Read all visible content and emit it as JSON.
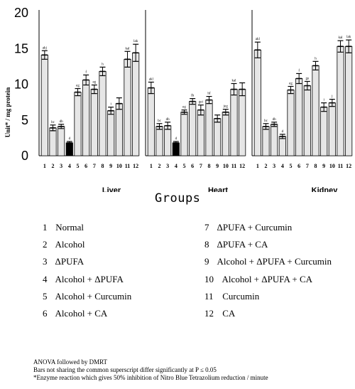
{
  "chart_data": {
    "type": "bar",
    "ylabel": "Unit* / mg protein",
    "ylim": [
      0,
      20
    ],
    "yticks": [
      0,
      5,
      10,
      15,
      20
    ],
    "categories": [
      "1",
      "2",
      "3",
      "4",
      "5",
      "6",
      "7",
      "8",
      "9",
      "10",
      "11",
      "12"
    ],
    "panels": [
      {
        "name": "Liver",
        "values": [
          14.1,
          3.9,
          4.1,
          1.8,
          8.9,
          10.6,
          9.3,
          11.8,
          6.3,
          7.3,
          13.5,
          14.4
        ],
        "errors": [
          0.6,
          0.4,
          0.3,
          0.2,
          0.5,
          0.7,
          0.6,
          0.6,
          0.5,
          0.8,
          1.1,
          1.2
        ],
        "superscripts": [
          "akj",
          "bc",
          "db",
          "d",
          "eg",
          "f",
          "eg",
          "h",
          "i",
          "",
          "kal",
          "lak"
        ]
      },
      {
        "name": "Heart",
        "values": [
          9.5,
          4.1,
          4.2,
          1.8,
          6.1,
          7.6,
          6.4,
          7.8,
          5.2,
          6.1,
          9.3,
          9.3
        ],
        "errors": [
          0.8,
          0.4,
          0.5,
          0.2,
          0.3,
          0.4,
          0.7,
          0.5,
          0.5,
          0.4,
          0.8,
          0.9
        ],
        "superscripts": [
          "akl",
          "bc",
          "db",
          "d",
          "eg",
          "fh",
          "gei",
          "hf",
          "",
          "jeg",
          "kal",
          ""
        ]
      },
      {
        "name": "Kidney",
        "values": [
          14.8,
          4.1,
          4.4,
          2.7,
          9.2,
          10.8,
          9.8,
          12.6,
          6.8,
          7.4,
          15.3,
          15.3
        ],
        "errors": [
          1.1,
          0.4,
          0.3,
          0.3,
          0.5,
          0.7,
          0.6,
          0.6,
          0.6,
          0.5,
          0.8,
          0.9
        ],
        "superscripts": [
          "akl",
          "bc",
          "db",
          "d",
          "eg",
          "f",
          "ge",
          "h",
          "i",
          "j",
          "kal",
          "lak"
        ]
      }
    ],
    "xlabel": "Groups"
  },
  "legend_left": [
    {
      "num": "1",
      "label": "Normal"
    },
    {
      "num": "2",
      "label": "Alcohol"
    },
    {
      "num": "3",
      "label": "ΔPUFA"
    },
    {
      "num": "4",
      "label": "Alcohol + ΔPUFA"
    },
    {
      "num": "5",
      "label": "Alcohol + Curcumin"
    },
    {
      "num": "6",
      "label": "Alcohol + CA"
    }
  ],
  "legend_right": [
    {
      "num": "7",
      "label": "ΔPUFA + Curcumin"
    },
    {
      "num": "8",
      "label": "ΔPUFA + CA"
    },
    {
      "num": "9",
      "label": "Alcohol + ΔPUFA + Curcumin"
    },
    {
      "num": "10",
      "label": "Alcohol + ΔPUFA + CA"
    },
    {
      "num": "11",
      "label": "Curcumin"
    },
    {
      "num": "12",
      "label": "CA"
    }
  ],
  "notes": {
    "line1": "ANOVA followed by DMRT",
    "line2": "Bars not sharing the common superscript differ significantly at P ≤ 0.05",
    "line3": "*Enzyme reaction which gives 50% inhibition of Nitro Blue Tetrazolium reduction / minute"
  },
  "colors": {
    "bar_fill": "#ffffff",
    "bar_stroke": "#000000",
    "hatch": "#9a9a9a",
    "dark_bar": "#000000"
  }
}
